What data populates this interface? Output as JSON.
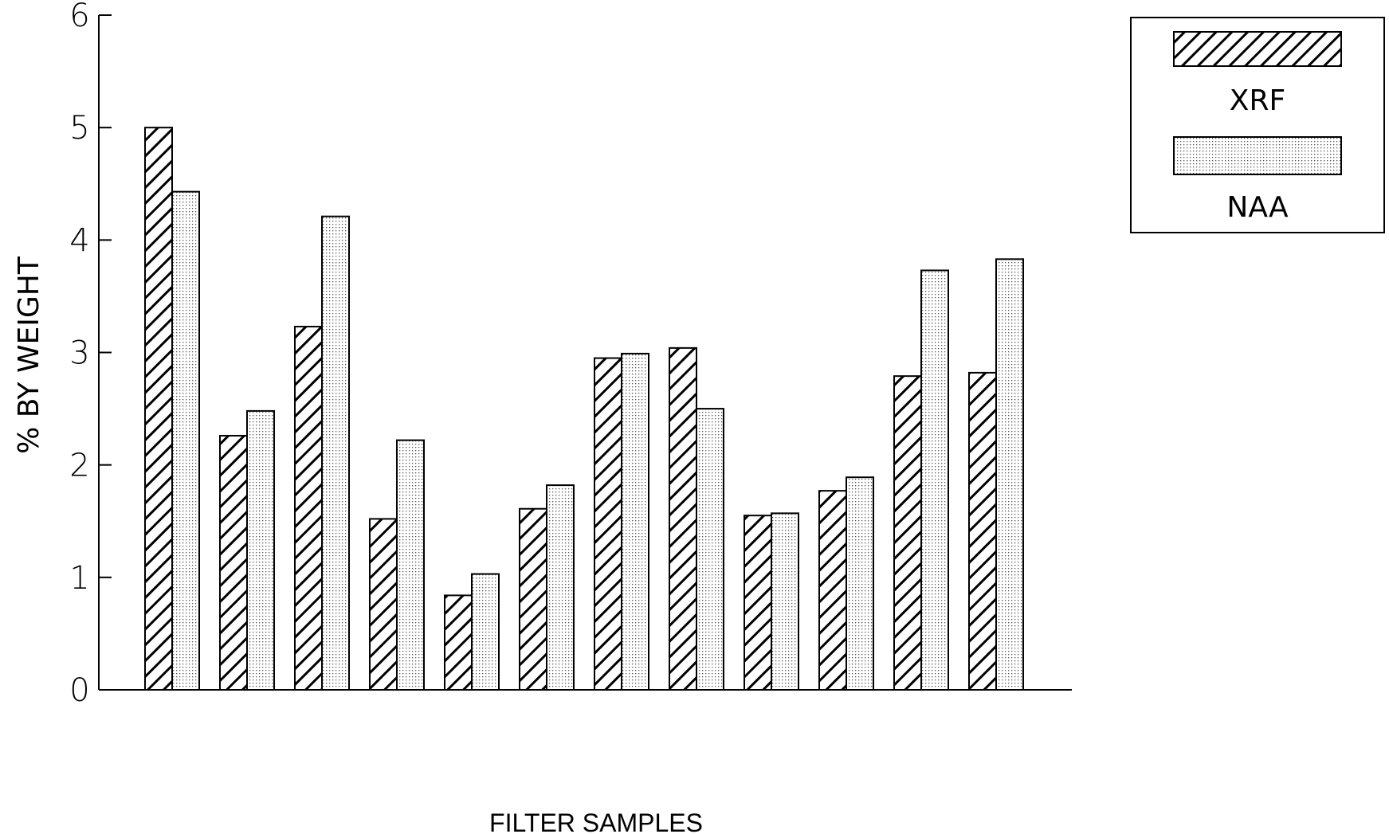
{
  "chart_data": {
    "type": "bar",
    "ylabel": "% BY WEIGHT",
    "xlabel": "FILTER SAMPLES",
    "ylim": [
      0,
      6
    ],
    "yticks": [
      0,
      1,
      2,
      3,
      4,
      5,
      6
    ],
    "grid": false,
    "legend_position": "top-right",
    "series": [
      {
        "name": "XRF",
        "pattern": "diagonal-hatch",
        "values": [
          5.0,
          2.26,
          3.23,
          1.52,
          0.84,
          1.61,
          2.95,
          3.04,
          1.55,
          1.77,
          2.79,
          2.82
        ]
      },
      {
        "name": "NAA",
        "pattern": "dotted",
        "values": [
          4.43,
          2.48,
          4.21,
          2.22,
          1.03,
          1.82,
          2.99,
          2.5,
          1.57,
          1.89,
          3.73,
          3.83
        ]
      }
    ]
  }
}
